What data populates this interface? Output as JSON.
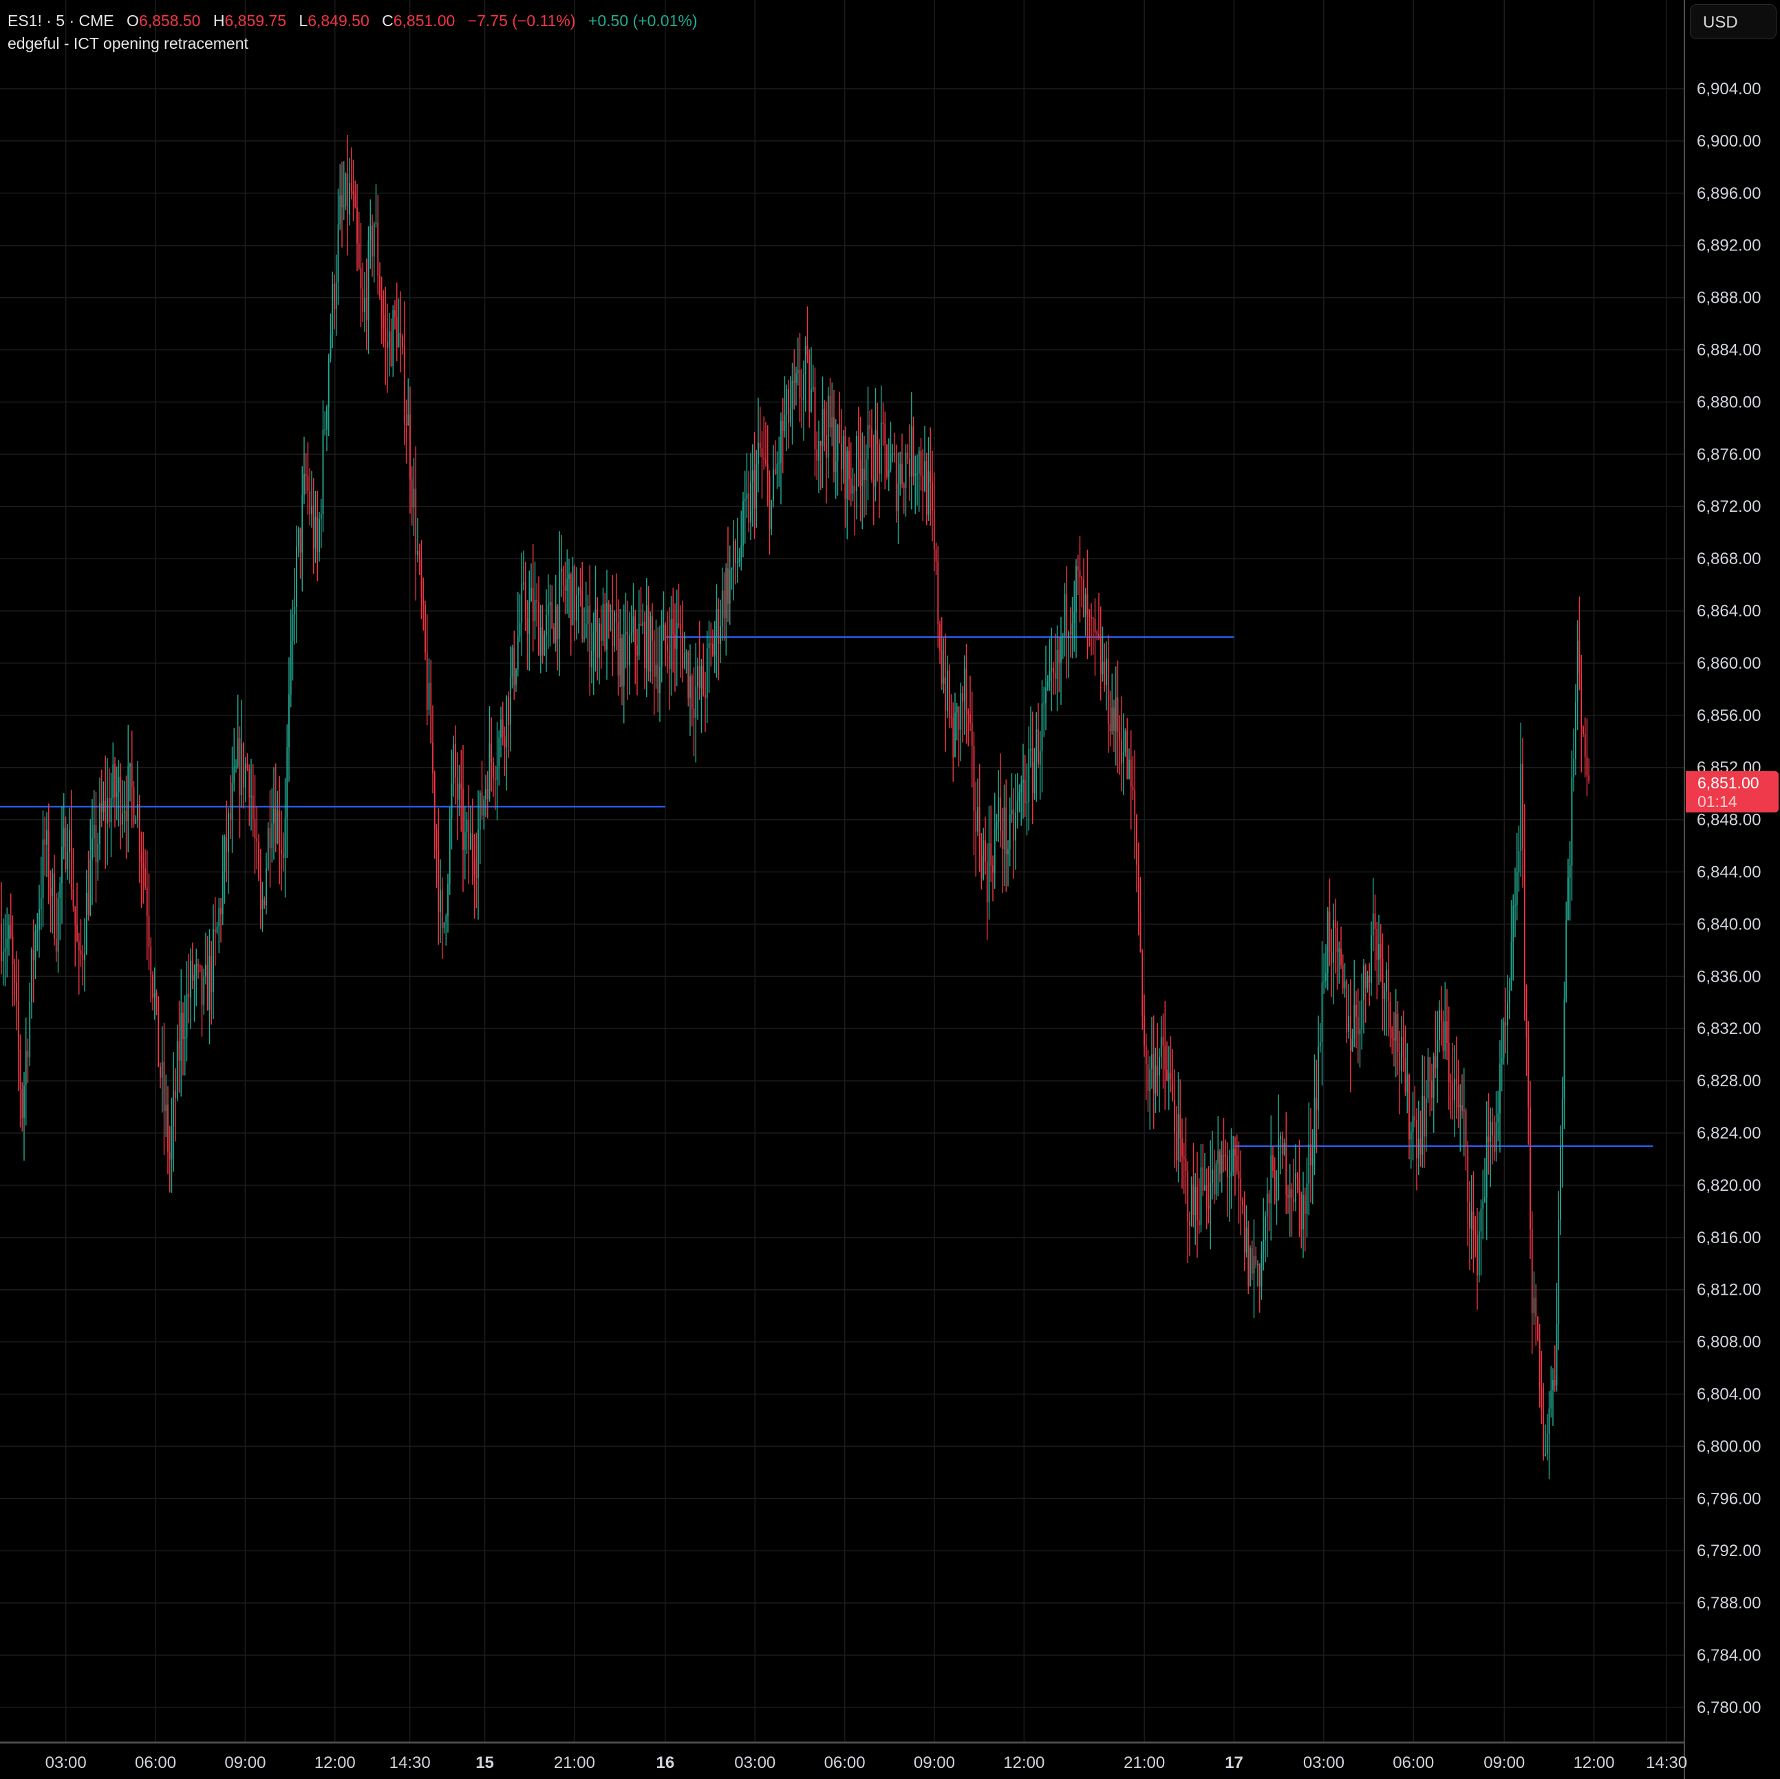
{
  "legend": {
    "symbol": "ES1! · 5 · CME",
    "open_label": "O",
    "open": "6,858.50",
    "high_label": "H",
    "high": "6,859.75",
    "low_label": "L",
    "low": "6,849.50",
    "close_label": "C",
    "close": "6,851.00",
    "change": "−7.75 (−0.11%)",
    "change2": "+0.50 (+0.01%)",
    "indicator": "edgeful - ICT opening retracement"
  },
  "currency_button": "USD",
  "last_price": {
    "price": "6,851.00",
    "countdown": "01:14"
  },
  "colors": {
    "up": "#22ab94",
    "down": "#f23645",
    "level_line": "#2962ff",
    "background": "#000000",
    "grid": "#1c1c1c"
  },
  "chart_data": {
    "type": "candlestick",
    "y_ticks": [
      "6,904.00",
      "6,900.00",
      "6,896.00",
      "6,892.00",
      "6,888.00",
      "6,884.00",
      "6,880.00",
      "6,876.00",
      "6,872.00",
      "6,868.00",
      "6,864.00",
      "6,860.00",
      "6,856.00",
      "6,852.00",
      "6,848.00",
      "6,844.00",
      "6,840.00",
      "6,836.00",
      "6,832.00",
      "6,828.00",
      "6,824.00",
      "6,820.00",
      "6,816.00",
      "6,812.00",
      "6,808.00",
      "6,804.00",
      "6,800.00",
      "6,796.00",
      "6,792.00",
      "6,788.00",
      "6,784.00",
      "6,780.00"
    ],
    "ylim": [
      6778,
      6910
    ],
    "x_ticks": [
      "03:00",
      "06:00",
      "09:00",
      "12:00",
      "14:30",
      "15",
      "21:00",
      "16",
      "03:00",
      "06:00",
      "09:00",
      "12:00",
      "21:00",
      "17",
      "03:00",
      "06:00",
      "09:00",
      "12:00",
      "14:30"
    ],
    "approx_closes": [
      6840,
      6838,
      6826,
      6838,
      6846,
      6840,
      6848,
      6836,
      6844,
      6848,
      6850,
      6850,
      6850,
      6842,
      6830,
      6822,
      6832,
      6836,
      6834,
      6838,
      6846,
      6852,
      6852,
      6840,
      6850,
      6846,
      6866,
      6874,
      6868,
      6884,
      6894,
      6896,
      6886,
      6894,
      6884,
      6886,
      6878,
      6866,
      6854,
      6838,
      6852,
      6846,
      6846,
      6852,
      6854,
      6858,
      6864,
      6864,
      6862,
      6864,
      6866,
      6864,
      6862,
      6863,
      6862,
      6860,
      6862,
      6862,
      6860,
      6862,
      6862,
      6858,
      6858,
      6862,
      6866,
      6868,
      6872,
      6876,
      6872,
      6878,
      6880,
      6882,
      6878,
      6878,
      6876,
      6874,
      6876,
      6876,
      6876,
      6874,
      6876,
      6876,
      6872,
      6860,
      6854,
      6858,
      6848,
      6844,
      6848,
      6846,
      6850,
      6852,
      6856,
      6858,
      6864,
      6866,
      6862,
      6860,
      6856,
      6854,
      6848,
      6828,
      6830,
      6828,
      6822,
      6818,
      6820,
      6820,
      6822,
      6820,
      6814,
      6814,
      6820,
      6822,
      6820,
      6818,
      6828,
      6840,
      6836,
      6832,
      6834,
      6840,
      6836,
      6832,
      6826,
      6824,
      6828,
      6832,
      6828,
      6824,
      6814,
      6822,
      6826,
      6834,
      6850,
      6812,
      6800,
      6806,
      6840,
      6860,
      6851
    ],
    "levels": [
      {
        "price": 6849,
        "from": "start",
        "to": "16"
      },
      {
        "price": 6862,
        "from": "16",
        "to": "17"
      },
      {
        "price": 6823,
        "from": "17",
        "to": "end"
      }
    ]
  }
}
